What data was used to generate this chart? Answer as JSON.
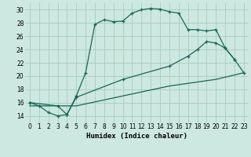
{
  "xlabel": "Humidex (Indice chaleur)",
  "background_color": "#cce8e0",
  "grid_color": "#aaccbb",
  "line_color": "#1a6655",
  "xlim": [
    -0.5,
    23.5
  ],
  "ylim": [
    13.0,
    31.0
  ],
  "xticks": [
    0,
    1,
    2,
    3,
    4,
    5,
    6,
    7,
    8,
    9,
    10,
    11,
    12,
    13,
    14,
    15,
    16,
    17,
    18,
    19,
    20,
    21,
    22,
    23
  ],
  "yticks": [
    14,
    16,
    18,
    20,
    22,
    24,
    26,
    28,
    30
  ],
  "curve1_x": [
    0,
    1,
    2,
    3,
    4,
    5,
    6,
    7,
    8,
    9,
    10,
    11,
    12,
    13,
    14,
    15,
    16,
    17,
    18,
    19,
    20,
    21,
    22
  ],
  "curve1_y": [
    16.0,
    15.5,
    14.5,
    14.0,
    14.2,
    17.0,
    20.5,
    27.8,
    28.5,
    28.2,
    28.3,
    29.5,
    30.0,
    30.2,
    30.1,
    29.7,
    29.5,
    27.0,
    27.0,
    26.8,
    27.0,
    24.2,
    22.5
  ],
  "curve2_x": [
    0,
    3,
    4,
    5,
    10,
    15,
    17,
    18,
    19,
    20,
    21,
    22,
    23
  ],
  "curve2_y": [
    16.0,
    15.5,
    14.2,
    16.8,
    19.5,
    21.5,
    23.0,
    24.0,
    25.2,
    25.0,
    24.2,
    22.5,
    20.5
  ],
  "curve3_x": [
    0,
    5,
    10,
    15,
    20,
    23
  ],
  "curve3_y": [
    15.5,
    15.5,
    17.0,
    18.5,
    19.5,
    20.5
  ]
}
